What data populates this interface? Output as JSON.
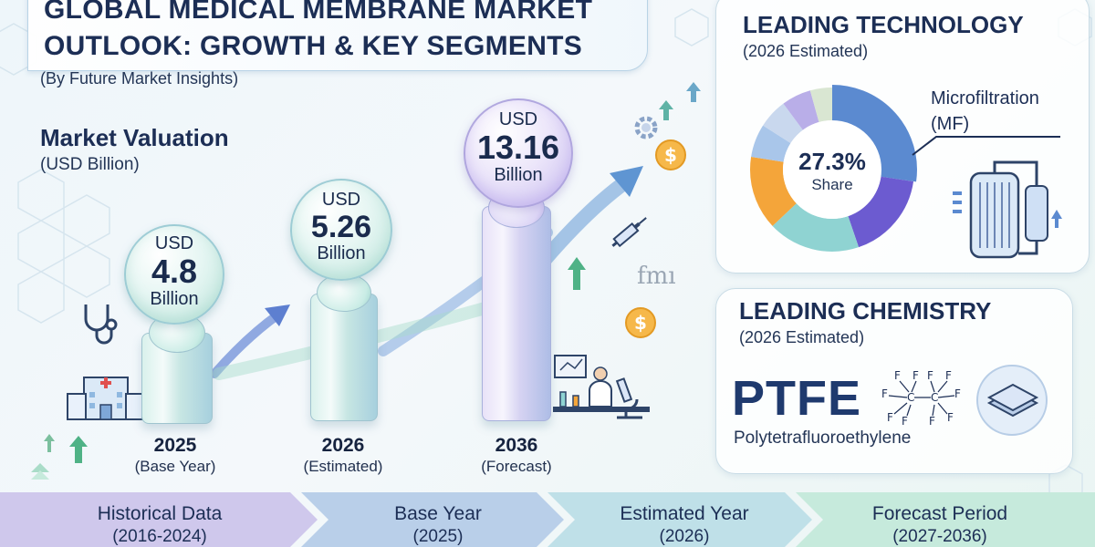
{
  "title": {
    "line1": "GLOBAL MEDICAL MEMBRANE MARKET",
    "line2": "OUTLOOK: GROWTH & KEY SEGMENTS",
    "source": "(By Future Market Insights)"
  },
  "valuation": {
    "heading": "Market Valuation",
    "unit": "(USD Billion)",
    "points": [
      {
        "currency": "USD",
        "value": "4.8",
        "unit": "Billion",
        "year": "2025",
        "label": "(Base Year)"
      },
      {
        "currency": "USD",
        "value": "5.26",
        "unit": "Billion",
        "year": "2026",
        "label": "(Estimated)"
      },
      {
        "currency": "USD",
        "value": "13.16",
        "unit": "Billion",
        "year": "2036",
        "label": "(Forecast)"
      }
    ]
  },
  "technology": {
    "heading": "LEADING TECHNOLOGY",
    "sub": "(2026 Estimated)",
    "share_value": "27.3%",
    "share_label": "Share",
    "segment_line1": "Microfiltration",
    "segment_line2": "(MF)",
    "share_fraction": 0.273
  },
  "chemistry": {
    "heading": "LEADING CHEMISTRY",
    "sub": "(2026 Estimated)",
    "abbr": "PTFE",
    "name": "Polytetrafluoroethylene"
  },
  "timeline": [
    {
      "label": "Historical Data",
      "range": "(2016-2024)"
    },
    {
      "label": "Base Year",
      "range": "(2025)"
    },
    {
      "label": "Estimated Year",
      "range": "(2026)"
    },
    {
      "label": "Forecast Period",
      "range": "(2027-2036)"
    }
  ],
  "watermark": "fmı",
  "colors": {
    "navy": "#1c2e55",
    "mf_purple": "#6c5bd0",
    "mf_blue": "#5b8ad0",
    "orange": "#f4a53a",
    "teal": "#8fd3d2",
    "lavender": "#b9aee8",
    "green_arrow": "#4fb286",
    "tl1": "#cfc8ec",
    "tl2": "#b9cfe9",
    "tl3": "#bfe0e8",
    "tl4": "#c6eadc"
  },
  "icons": [
    "hospital-icon",
    "stethoscope-icon",
    "syringe-icon",
    "gear-icon",
    "dollar-coin-icon",
    "microscope-icon",
    "scientist-icon",
    "filter-unit-icon",
    "membrane-layers-icon",
    "up-arrow-icon"
  ]
}
